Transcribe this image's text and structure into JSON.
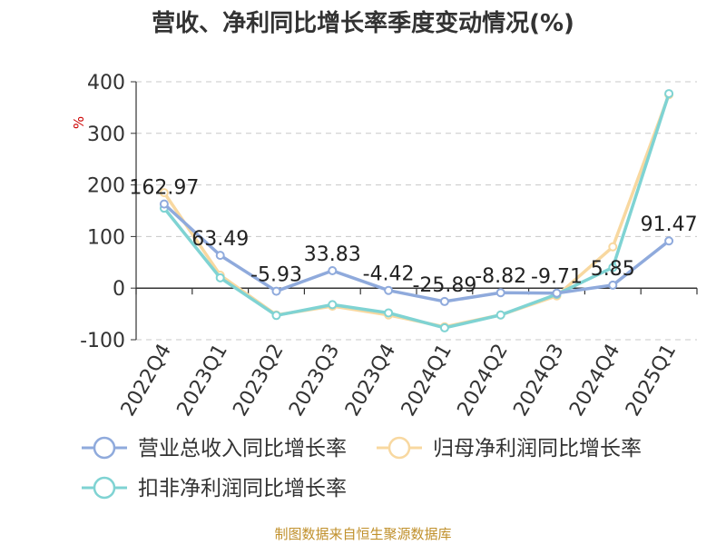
{
  "chart_data": {
    "type": "line",
    "title": "营收、净利同比增长率季度变动情况(%)",
    "ylabel": "%",
    "source": "制图数据来自恒生聚源数据库",
    "categories": [
      "2022Q4",
      "2023Q1",
      "2023Q2",
      "2023Q3",
      "2023Q4",
      "2024Q1",
      "2024Q2",
      "2024Q3",
      "2024Q4",
      "2025Q1"
    ],
    "ylim": [
      -100,
      400
    ],
    "yticks": [
      400,
      300,
      200,
      100,
      0,
      -100
    ],
    "grid": true,
    "legend_position": "bottom",
    "series": [
      {
        "name": "营业总收入同比增长率",
        "color": "#8faadc",
        "values": [
          162.97,
          63.49,
          -5.93,
          33.83,
          -4.42,
          -25.89,
          -8.82,
          -9.71,
          5.85,
          91.47
        ],
        "labels": [
          "162.97",
          "63.49",
          "-5.93",
          "33.83",
          "-4.42",
          "-25.89",
          "-8.82",
          "-9.71",
          "5.85",
          "91.47"
        ]
      },
      {
        "name": "归母净利润同比增长率",
        "color": "#f8d8a0",
        "values": [
          185,
          25,
          -52,
          -35,
          -52,
          -75,
          -52,
          -15,
          80,
          375
        ]
      },
      {
        "name": "扣非净利润同比增长率",
        "color": "#7fd3d3",
        "values": [
          155,
          20,
          -53,
          -32,
          -48,
          -77,
          -52,
          -12,
          40,
          377
        ]
      }
    ]
  }
}
